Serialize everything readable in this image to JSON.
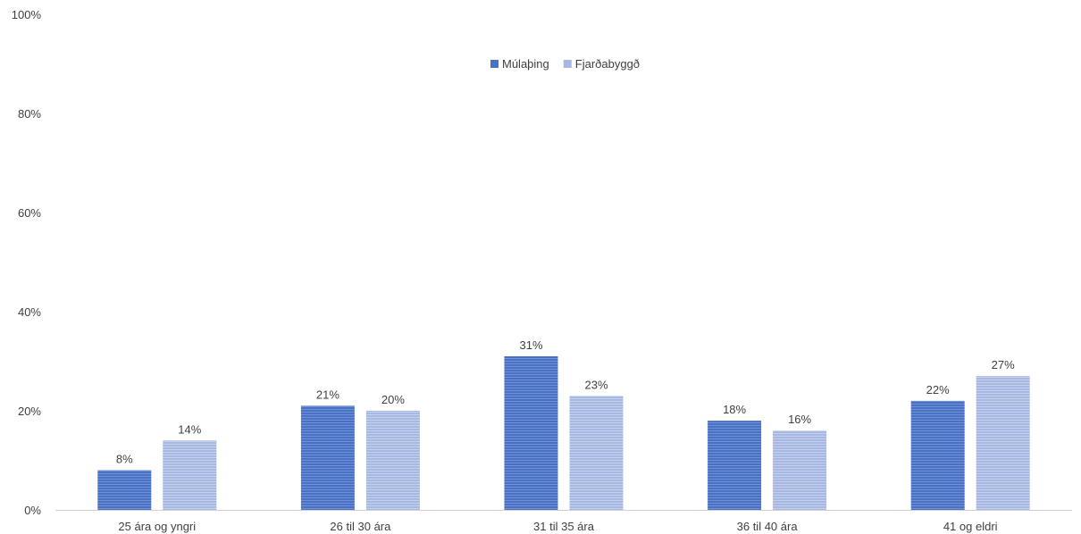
{
  "chart_data": {
    "type": "bar",
    "categories": [
      "25 ára og yngri",
      "26 til 30 ára",
      "31 til 35 ára",
      "36 til 40 ára",
      "41 og eldri"
    ],
    "series": [
      {
        "name": "Múlaþing",
        "values": [
          8,
          21,
          31,
          18,
          22
        ],
        "labels": [
          "8%",
          "21%",
          "31%",
          "18%",
          "22%"
        ],
        "color": "#4a72c4"
      },
      {
        "name": "Fjarðabyggð",
        "values": [
          14,
          20,
          23,
          16,
          27
        ],
        "labels": [
          "14%",
          "20%",
          "23%",
          "16%",
          "27%"
        ],
        "color": "#a7b8e2"
      }
    ],
    "ylim": [
      0,
      100
    ],
    "yticks": [
      "0%",
      "20%",
      "40%",
      "60%",
      "80%",
      "100%"
    ],
    "ytick_values": [
      0,
      20,
      40,
      60,
      80,
      100
    ],
    "grid": false,
    "legend_position": "top-center"
  }
}
